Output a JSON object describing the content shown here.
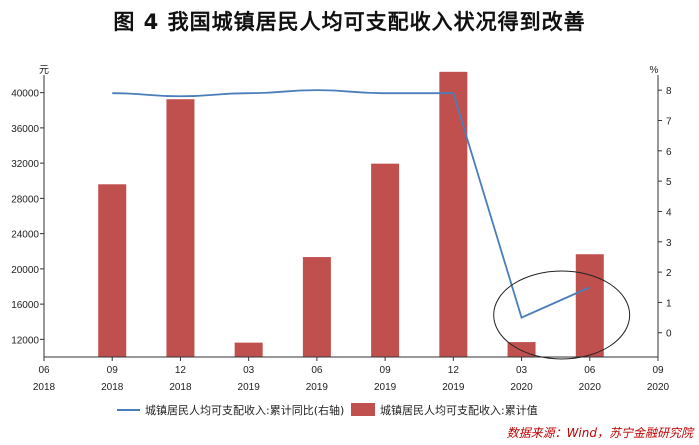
{
  "title": "图 4  我国城镇居民人均可支配收入状况得到改善",
  "source": "数据来源：Wind，苏宁金融研究院",
  "chart_data": {
    "type": "bar",
    "categories": [
      {
        "month": "06",
        "year": "2018"
      },
      {
        "month": "09",
        "year": "2018"
      },
      {
        "month": "12",
        "year": "2018"
      },
      {
        "month": "03",
        "year": "2019"
      },
      {
        "month": "06",
        "year": "2019"
      },
      {
        "month": "09",
        "year": "2019"
      },
      {
        "month": "12",
        "year": "2019"
      },
      {
        "month": "03",
        "year": "2020"
      },
      {
        "month": "06",
        "year": "2020"
      },
      {
        "month": "09",
        "year": "2020"
      }
    ],
    "y_left": {
      "unit": "元",
      "ticks": [
        12000,
        16000,
        20000,
        24000,
        28000,
        32000,
        36000,
        40000
      ],
      "ylim": [
        10000,
        42000
      ]
    },
    "y_right": {
      "unit": "%",
      "ticks": [
        0,
        1,
        2,
        3,
        4,
        5,
        6,
        7,
        8
      ],
      "ylim": [
        -0.8,
        8.5
      ]
    },
    "series": [
      {
        "name": "城镇居民人均可支配收入:累计值",
        "type": "bar",
        "axis": "left",
        "color": "#c0504d",
        "values": [
          null,
          29600,
          39250,
          11630,
          21340,
          31940,
          42360,
          11690,
          21660,
          null
        ]
      },
      {
        "name": "城镇居民人均可支配收入:累计同比(右轴)",
        "type": "line",
        "axis": "right",
        "color": "#4a7ebb",
        "values": [
          null,
          7.9,
          7.8,
          7.9,
          8.0,
          7.9,
          7.9,
          0.5,
          1.5,
          null
        ]
      }
    ],
    "annotation": {
      "type": "ellipse",
      "around_categories": [
        "03/2020",
        "06/2020"
      ]
    },
    "grid": false,
    "legend": "bottom"
  }
}
